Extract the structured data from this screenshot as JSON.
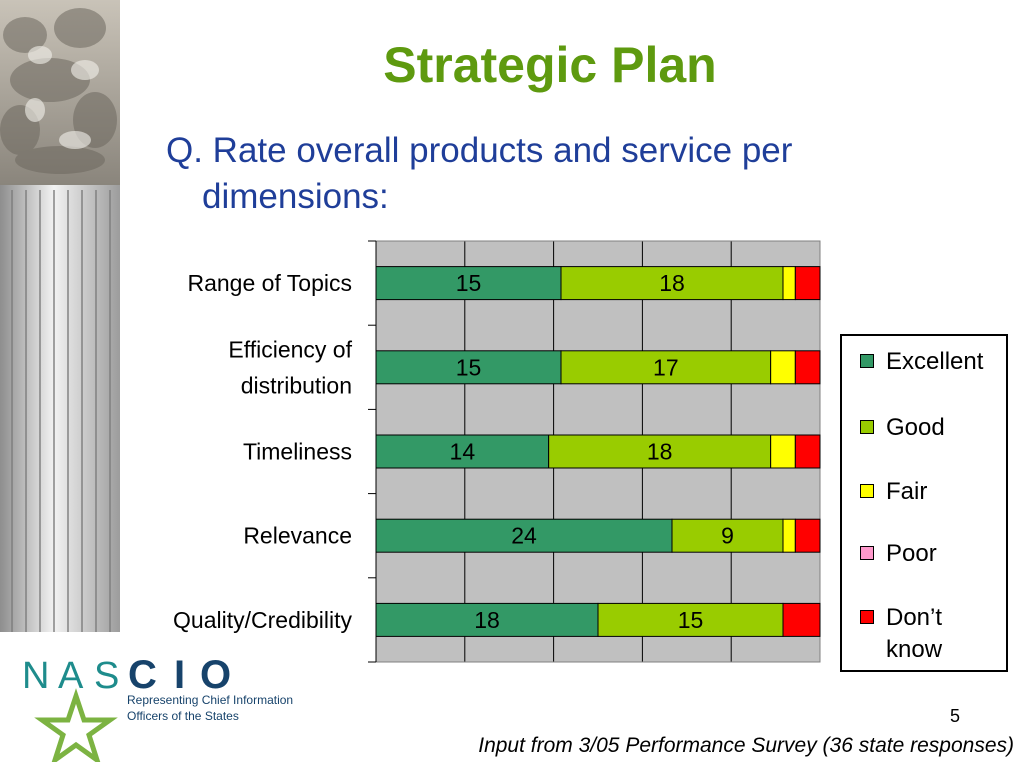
{
  "slide": {
    "title": "Strategic Plan",
    "question_line1": "Q. Rate overall products and service per",
    "question_line2": "dimensions:",
    "page_number": "5",
    "footer": "Input from 3/05 Performance Survey (36 state responses)"
  },
  "logo": {
    "letters": [
      "N",
      "A",
      "S",
      "C",
      "I",
      "O"
    ],
    "tagline_line1": "Representing Chief Information",
    "tagline_line2": "Officers of the States",
    "letter_colors": [
      "#1e8c8c",
      "#1e8c8c",
      "#1e8c8c",
      "#17436b",
      "#17436b",
      "#17436b"
    ],
    "star_color": "#7cb342"
  },
  "chart_data": {
    "type": "bar",
    "orientation": "horizontal",
    "stacked": true,
    "categories": [
      [
        "Range of Topics"
      ],
      [
        "Efficiency of",
        "distribution"
      ],
      [
        "Timeliness"
      ],
      [
        "Relevance"
      ],
      [
        "Quality/Credibility"
      ]
    ],
    "series": [
      {
        "name": "Excellent",
        "color": "#339966",
        "values": [
          15,
          15,
          14,
          24,
          18
        ],
        "labels": [
          "15",
          "15",
          "14",
          "24",
          "18"
        ]
      },
      {
        "name": "Good",
        "color": "#99cc00",
        "values": [
          18,
          17,
          18,
          9,
          15
        ],
        "labels": [
          "18",
          "17",
          "18",
          "9",
          "15"
        ]
      },
      {
        "name": "Fair",
        "color": "#ffff00",
        "values": [
          1,
          2,
          2,
          1,
          0
        ],
        "labels": [
          "",
          "",
          "",
          "",
          ""
        ]
      },
      {
        "name": "Poor",
        "color": "#ff99cc",
        "values": [
          0,
          0,
          0,
          0,
          0
        ],
        "labels": [
          "",
          "",
          "",
          "",
          ""
        ]
      },
      {
        "name": "Don’t know",
        "color": "#ff0000",
        "values": [
          2,
          2,
          2,
          2,
          3
        ],
        "labels": [
          "",
          "",
          "",
          "",
          ""
        ]
      }
    ],
    "xlim": [
      0,
      36
    ],
    "x_gridline_step": 7.2,
    "grid": true,
    "plot_background": "#c0c0c0",
    "legend_position": "right"
  }
}
